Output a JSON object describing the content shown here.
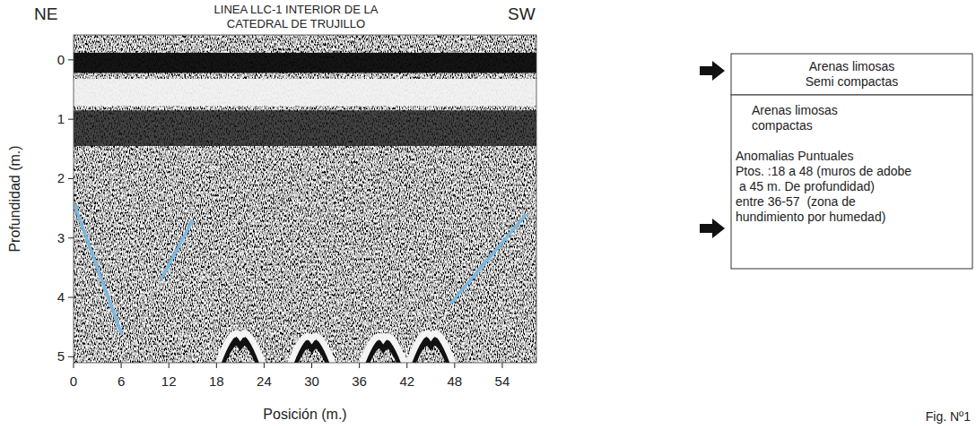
{
  "chart_data": {
    "type": "radargram",
    "title": [
      "LINEA LLC-1 INTERIOR DE LA",
      "CATEDRAL DE TRUJILLO"
    ],
    "direction_labels": [
      "NE",
      "SW"
    ],
    "x_label": "Posición (m.)",
    "y_label": "Profundidad (m.)",
    "xlim": [
      0,
      58.3
    ],
    "ylim": [
      -0.42,
      5.1
    ],
    "xticks": [
      0,
      6,
      12,
      18,
      24,
      30,
      36,
      42,
      48,
      54
    ],
    "yticks": [
      0,
      1,
      2,
      3,
      4,
      5
    ],
    "bands": [
      {
        "top": -0.12,
        "bottom": 0.22,
        "color": "#0a0a0a"
      },
      {
        "top": 0.32,
        "bottom": 0.78,
        "color": "#f2f2f2"
      },
      {
        "top": 0.85,
        "bottom": 1.45,
        "color": "#1a1a1a"
      }
    ],
    "hyperbolas": [
      {
        "x": 21,
        "y": 4.65
      },
      {
        "x": 30,
        "y": 4.7
      },
      {
        "x": 39,
        "y": 4.7
      },
      {
        "x": 45,
        "y": 4.65
      }
    ],
    "interpretation_lines": {
      "color": "#7ab8e0",
      "segments": [
        {
          "x": [
            0,
            6
          ],
          "y": [
            2.4,
            4.6
          ]
        },
        {
          "x": [
            11,
            15
          ],
          "y": [
            3.7,
            2.7
          ]
        },
        {
          "x": [
            47.5,
            57
          ],
          "y": [
            4.1,
            2.6
          ]
        }
      ]
    },
    "layers": [
      {
        "lines": [
          "Arenas limosas",
          "Semi compactas"
        ]
      },
      {
        "lines": [
          "Arenas limosas",
          "compactas",
          "Anomalias Puntuales",
          "Ptos. :18 a 48 (muros de adobe",
          " a 45 m. De profundidad)",
          "entre 36-57  (zona de",
          "hundimiento por humedad)"
        ]
      }
    ],
    "figure_label": "Fig. Nº1"
  }
}
